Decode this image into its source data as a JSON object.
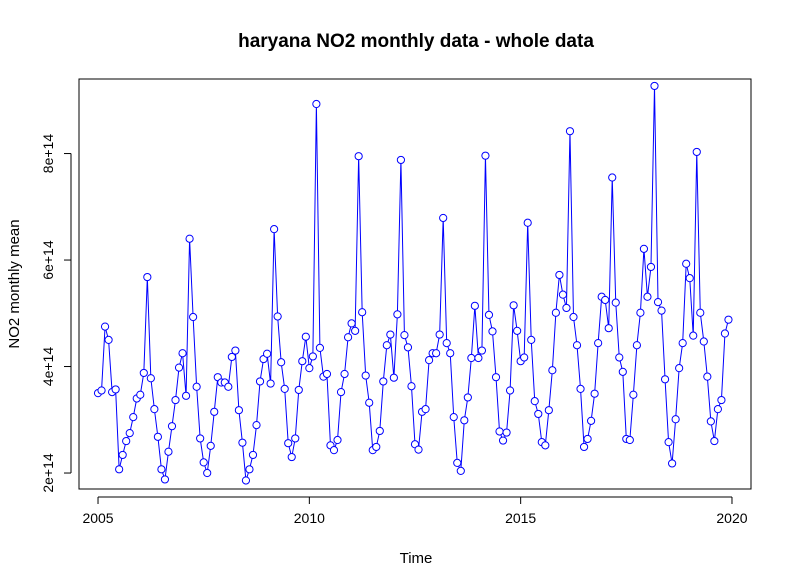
{
  "chart_data": {
    "type": "line",
    "title": "haryana NO2 monthly data - whole data",
    "xlabel": "Time",
    "ylabel": "NO2 monthly mean",
    "xlim": [
      2004.55,
      2020.45
    ],
    "ylim": [
      170000000000000.0,
      940000000000000.0
    ],
    "x_ticks": [
      2005,
      2010,
      2015,
      2020
    ],
    "x_tick_labels": [
      "2005",
      "2010",
      "2015",
      "2020"
    ],
    "y_ticks": [
      200000000000000.0,
      400000000000000.0,
      600000000000000.0,
      800000000000000.0
    ],
    "y_tick_labels": [
      "2e+14",
      "4e+14",
      "6e+14",
      "8e+14"
    ],
    "grid": false,
    "markers": "open-circle",
    "line_color": "#0000ff",
    "x_start": 2005.0,
    "x_step": 0.08333333,
    "series": [
      {
        "name": "",
        "values": [
          350000000000000.0,
          355000000000000.0,
          475000000000000.0,
          450000000000000.0,
          352000000000000.0,
          357000000000000.0,
          207000000000000.0,
          234000000000000.0,
          260000000000000.0,
          275000000000000.0,
          305000000000000.0,
          340000000000000.0,
          347000000000000.0,
          388000000000000.0,
          568000000000000.0,
          378000000000000.0,
          320000000000000.0,
          268000000000000.0,
          207000000000000.0,
          188000000000000.0,
          240000000000000.0,
          288000000000000.0,
          337000000000000.0,
          398000000000000.0,
          425000000000000.0,
          345000000000000.0,
          640000000000000.0,
          493000000000000.0,
          362000000000000.0,
          265000000000000.0,
          220000000000000.0,
          200000000000000.0,
          251000000000000.0,
          315000000000000.0,
          380000000000000.0,
          370000000000000.0,
          370000000000000.0,
          362000000000000.0,
          418000000000000.0,
          430000000000000.0,
          318000000000000.0,
          257000000000000.0,
          186000000000000.0,
          207000000000000.0,
          234000000000000.0,
          290000000000000.0,
          372000000000000.0,
          414000000000000.0,
          424000000000000.0,
          368000000000000.0,
          658000000000000.0,
          494000000000000.0,
          408000000000000.0,
          358000000000000.0,
          256000000000000.0,
          230000000000000.0,
          265000000000000.0,
          356000000000000.0,
          410000000000000.0,
          456000000000000.0,
          397000000000000.0,
          419000000000000.0,
          893000000000000.0,
          435000000000000.0,
          381000000000000.0,
          386000000000000.0,
          252000000000000.0,
          243000000000000.0,
          262000000000000.0,
          352000000000000.0,
          386000000000000.0,
          455000000000000.0,
          481000000000000.0,
          467000000000000.0,
          795000000000000.0,
          502000000000000.0,
          383000000000000.0,
          332000000000000.0,
          243000000000000.0,
          249000000000000.0,
          279000000000000.0,
          372000000000000.0,
          440000000000000.0,
          460000000000000.0,
          379000000000000.0,
          498000000000000.0,
          788000000000000.0,
          459000000000000.0,
          436000000000000.0,
          363000000000000.0,
          254000000000000.0,
          244000000000000.0,
          315000000000000.0,
          320000000000000.0,
          412000000000000.0,
          425000000000000.0,
          425000000000000.0,
          460000000000000.0,
          679000000000000.0,
          444000000000000.0,
          425000000000000.0,
          305000000000000.0,
          219000000000000.0,
          204000000000000.0,
          299000000000000.0,
          342000000000000.0,
          416000000000000.0,
          514000000000000.0,
          416000000000000.0,
          430000000000000.0,
          796000000000000.0,
          497000000000000.0,
          466000000000000.0,
          380000000000000.0,
          278000000000000.0,
          261000000000000.0,
          276000000000000.0,
          355000000000000.0,
          515000000000000.0,
          467000000000000.0,
          410000000000000.0,
          417000000000000.0,
          670000000000000.0,
          450000000000000.0,
          335000000000000.0,
          311000000000000.0,
          258000000000000.0,
          252000000000000.0,
          318000000000000.0,
          393000000000000.0,
          501000000000000.0,
          572000000000000.0,
          535000000000000.0,
          510000000000000.0,
          842000000000000.0,
          493000000000000.0,
          440000000000000.0,
          358000000000000.0,
          249000000000000.0,
          264000000000000.0,
          298000000000000.0,
          349000000000000.0,
          444000000000000.0,
          531000000000000.0,
          525000000000000.0,
          472000000000000.0,
          755000000000000.0,
          520000000000000.0,
          417000000000000.0,
          390000000000000.0,
          264000000000000.0,
          262000000000000.0,
          347000000000000.0,
          440000000000000.0,
          501000000000000.0,
          621000000000000.0,
          531000000000000.0,
          587000000000000.0,
          927000000000000.0,
          521000000000000.0,
          505000000000000.0,
          376000000000000.0,
          258000000000000.0,
          218000000000000.0,
          301000000000000.0,
          397000000000000.0,
          444000000000000.0,
          593000000000000.0,
          566000000000000.0,
          458000000000000.0,
          803000000000000.0,
          501000000000000.0,
          447000000000000.0,
          381000000000000.0,
          297000000000000.0,
          260000000000000.0,
          320000000000000.0,
          337000000000000.0,
          462000000000000.0,
          488000000000000.0
        ]
      }
    ]
  }
}
